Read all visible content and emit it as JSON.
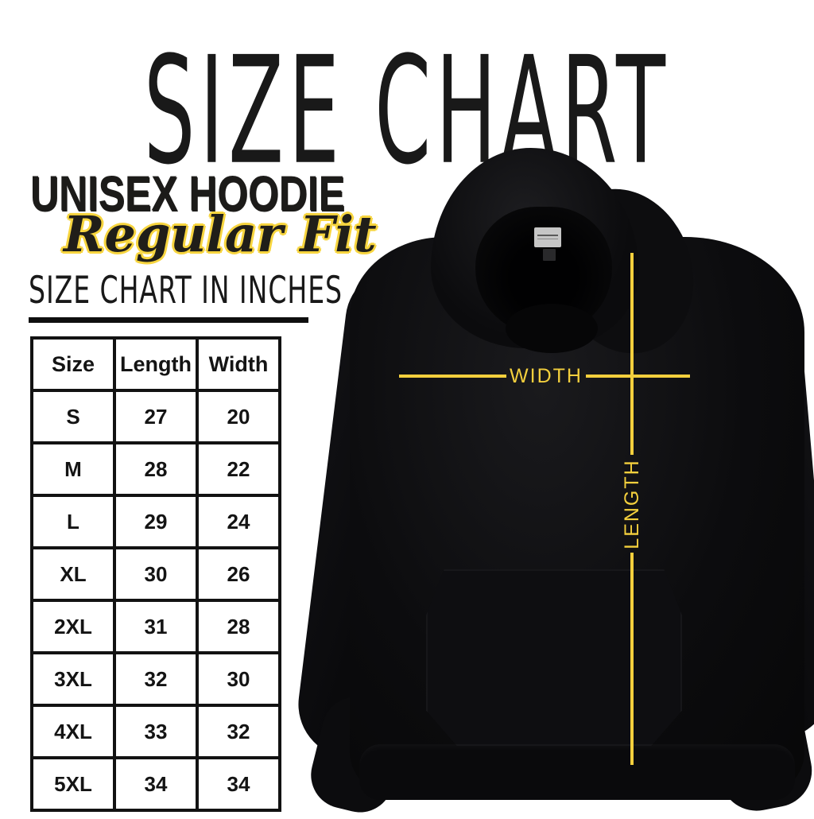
{
  "header": {
    "title": "SIZE CHART"
  },
  "product": {
    "name": "UNISEX HOODIE",
    "fit": "Regular Fit",
    "table_heading": "SIZE CHART IN INCHES"
  },
  "size_table": {
    "columns": [
      "Size",
      "Length",
      "Width"
    ],
    "rows": [
      [
        "S",
        "27",
        "20"
      ],
      [
        "M",
        "28",
        "22"
      ],
      [
        "L",
        "29",
        "24"
      ],
      [
        "XL",
        "30",
        "26"
      ],
      [
        "2XL",
        "31",
        "28"
      ],
      [
        "3XL",
        "32",
        "30"
      ],
      [
        "4XL",
        "33",
        "32"
      ],
      [
        "5XL",
        "34",
        "34"
      ]
    ]
  },
  "diagram": {
    "width_label": "WIDTH",
    "length_label": "LENGTH"
  },
  "colors": {
    "accent_yellow": "#F3CF3D",
    "outline_yellow": "#F7D53F",
    "ink_black": "#121212",
    "hoodie_black": "#0B0B0D",
    "background": "#FFFFFF"
  },
  "chart_data": {
    "type": "table",
    "title": "SIZE CHART",
    "subtitle": "UNISEX HOODIE Regular Fit",
    "units": "inches",
    "columns": [
      "Size",
      "Length",
      "Width"
    ],
    "rows": [
      [
        "S",
        27,
        20
      ],
      [
        "M",
        28,
        22
      ],
      [
        "L",
        29,
        24
      ],
      [
        "XL",
        30,
        26
      ],
      [
        "2XL",
        31,
        28
      ],
      [
        "3XL",
        32,
        30
      ],
      [
        "4XL",
        33,
        32
      ],
      [
        "5XL",
        34,
        34
      ]
    ]
  }
}
